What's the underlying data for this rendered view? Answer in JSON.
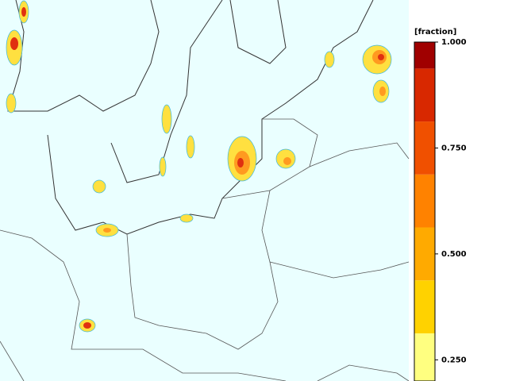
{
  "colorbar": {
    "label": "[fraction]",
    "lim": [
      0.2,
      1.0
    ],
    "bounds": [
      0.2,
      0.3125,
      0.4375,
      0.5625,
      0.6875,
      0.8125,
      0.9375,
      1.0
    ],
    "colors": [
      "#ffff80",
      "#ffd200",
      "#ffaa00",
      "#ff8200",
      "#f05000",
      "#d82800",
      "#a00000"
    ],
    "ticks": [
      {
        "value": 1.0,
        "label": "1.000"
      },
      {
        "value": 0.75,
        "label": "0.750"
      },
      {
        "value": 0.5,
        "label": "0.500"
      },
      {
        "value": 0.25,
        "label": "0.250"
      }
    ]
  }
}
